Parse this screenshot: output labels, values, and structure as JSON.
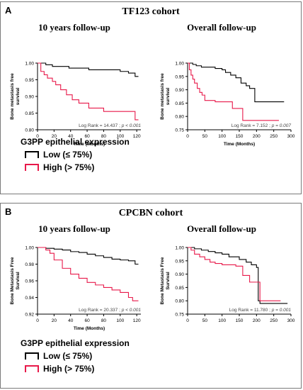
{
  "colors": {
    "low": "#000000",
    "high": "#e8194a",
    "frame": "#7a7a7a"
  },
  "panelA": {
    "letter": "A",
    "title": "TF123 cohort",
    "legend": {
      "title": "G3PP epithelial expression",
      "low": "Low (≤ 75%)",
      "high": "High (> 75%)"
    }
  },
  "panelB": {
    "letter": "B",
    "title": "CPCBN cohort",
    "legend": {
      "title": "G3PP epithelial expression",
      "low": "Low (≤ 75%)",
      "high": "High (> 75%)"
    }
  },
  "chart_data": [
    {
      "id": "A1",
      "type": "line",
      "title": "10 years follow-up",
      "xlabel": "Time (Months)",
      "ylabel": "Bone metastasis free survival",
      "xlim": [
        0,
        125
      ],
      "ylim": [
        0.8,
        1.0
      ],
      "xticks": [
        0,
        20,
        40,
        60,
        80,
        100,
        120
      ],
      "yticks": [
        0.8,
        0.85,
        0.9,
        0.95,
        1.0
      ],
      "tick_decimals": 2,
      "annotation": {
        "prefix": "Log Rank = 14.437 ; ",
        "pvalue": "p < 0.001"
      },
      "series": [
        {
          "key": "low",
          "x": [
            0,
            10,
            18,
            25,
            38,
            50,
            62,
            100,
            110,
            118,
            122
          ],
          "y": [
            1.0,
            0.995,
            0.99,
            0.99,
            0.985,
            0.985,
            0.98,
            0.975,
            0.97,
            0.96,
            0.96
          ]
        },
        {
          "key": "high",
          "x": [
            0,
            4,
            8,
            12,
            18,
            22,
            28,
            35,
            42,
            50,
            62,
            80,
            96,
            110,
            118,
            122
          ],
          "y": [
            1.0,
            0.975,
            0.965,
            0.955,
            0.945,
            0.935,
            0.92,
            0.905,
            0.89,
            0.88,
            0.865,
            0.855,
            0.855,
            0.855,
            0.83,
            0.83
          ]
        }
      ]
    },
    {
      "id": "A2",
      "type": "line",
      "title": "Overall follow-up",
      "xlabel": "Time (Months)",
      "ylabel": "Bone metastasis free survival",
      "xlim": [
        0,
        300
      ],
      "ylim": [
        0.75,
        1.0
      ],
      "xticks": [
        0,
        50,
        100,
        150,
        200,
        250,
        300
      ],
      "yticks": [
        0.75,
        0.8,
        0.85,
        0.9,
        0.95,
        1.0
      ],
      "tick_decimals": 2,
      "annotation": {
        "prefix": "Log Rank = 7.152 ; ",
        "pvalue": "p = 0.007"
      },
      "series": [
        {
          "key": "low",
          "x": [
            0,
            15,
            25,
            40,
            60,
            80,
            100,
            110,
            125,
            140,
            155,
            170,
            180,
            195,
            210,
            280
          ],
          "y": [
            1.0,
            0.995,
            0.99,
            0.985,
            0.985,
            0.98,
            0.975,
            0.965,
            0.955,
            0.945,
            0.925,
            0.915,
            0.905,
            0.855,
            0.855,
            0.855
          ]
        },
        {
          "key": "high",
          "x": [
            0,
            5,
            10,
            15,
            20,
            28,
            35,
            42,
            50,
            80,
            110,
            130,
            160,
            200,
            230,
            265
          ],
          "y": [
            1.0,
            0.975,
            0.955,
            0.94,
            0.925,
            0.905,
            0.89,
            0.88,
            0.86,
            0.855,
            0.855,
            0.83,
            0.785,
            0.785,
            0.785,
            0.785
          ]
        }
      ]
    },
    {
      "id": "B1",
      "type": "line",
      "title": "10 years follow-up",
      "xlabel": "Time (Months)",
      "ylabel": "Bone Metastasis Free Survival",
      "xlim": [
        0,
        125
      ],
      "ylim": [
        0.92,
        1.0
      ],
      "xticks": [
        0,
        20,
        40,
        60,
        80,
        100,
        120
      ],
      "yticks": [
        0.92,
        0.94,
        0.96,
        0.98,
        1.0
      ],
      "tick_decimals": 2,
      "annotation": {
        "prefix": "Log Rank = 20.337 ; ",
        "pvalue": "p < 0.001"
      },
      "series": [
        {
          "key": "low",
          "x": [
            0,
            10,
            20,
            30,
            40,
            50,
            60,
            70,
            80,
            90,
            100,
            110,
            118,
            122
          ],
          "y": [
            1.0,
            0.999,
            0.998,
            0.997,
            0.995,
            0.994,
            0.992,
            0.99,
            0.988,
            0.986,
            0.985,
            0.984,
            0.98,
            0.98
          ]
        },
        {
          "key": "high",
          "x": [
            0,
            10,
            15,
            20,
            30,
            40,
            50,
            60,
            70,
            80,
            90,
            100,
            110,
            115,
            122
          ],
          "y": [
            1.0,
            0.997,
            0.993,
            0.985,
            0.975,
            0.968,
            0.963,
            0.958,
            0.955,
            0.952,
            0.949,
            0.946,
            0.94,
            0.936,
            0.936
          ]
        }
      ]
    },
    {
      "id": "B2",
      "type": "line",
      "title": "Overall follow-up",
      "xlabel": "",
      "ylabel": "Bone Metastasis Free Survival",
      "xlim": [
        0,
        300
      ],
      "ylim": [
        0.75,
        1.0
      ],
      "xticks": [
        0,
        50,
        100,
        150,
        200,
        250,
        300
      ],
      "yticks": [
        0.75,
        0.8,
        0.85,
        0.9,
        0.95,
        1.0
      ],
      "tick_decimals": 2,
      "annotation": {
        "prefix": "Log Rank = 11.780 ; ",
        "pvalue": "p = 0.001"
      },
      "series": [
        {
          "key": "low",
          "x": [
            0,
            20,
            40,
            60,
            80,
            100,
            120,
            150,
            170,
            185,
            200,
            205,
            210,
            230,
            260,
            290
          ],
          "y": [
            1.0,
            0.995,
            0.99,
            0.985,
            0.98,
            0.975,
            0.965,
            0.955,
            0.945,
            0.935,
            0.925,
            0.8,
            0.79,
            0.79,
            0.79,
            0.79
          ]
        },
        {
          "key": "high",
          "x": [
            0,
            10,
            20,
            35,
            50,
            65,
            80,
            100,
            120,
            140,
            160,
            180,
            200,
            210,
            230,
            270
          ],
          "y": [
            1.0,
            0.99,
            0.975,
            0.965,
            0.955,
            0.945,
            0.94,
            0.935,
            0.935,
            0.93,
            0.895,
            0.87,
            0.87,
            0.8,
            0.8,
            0.8
          ]
        }
      ]
    }
  ]
}
